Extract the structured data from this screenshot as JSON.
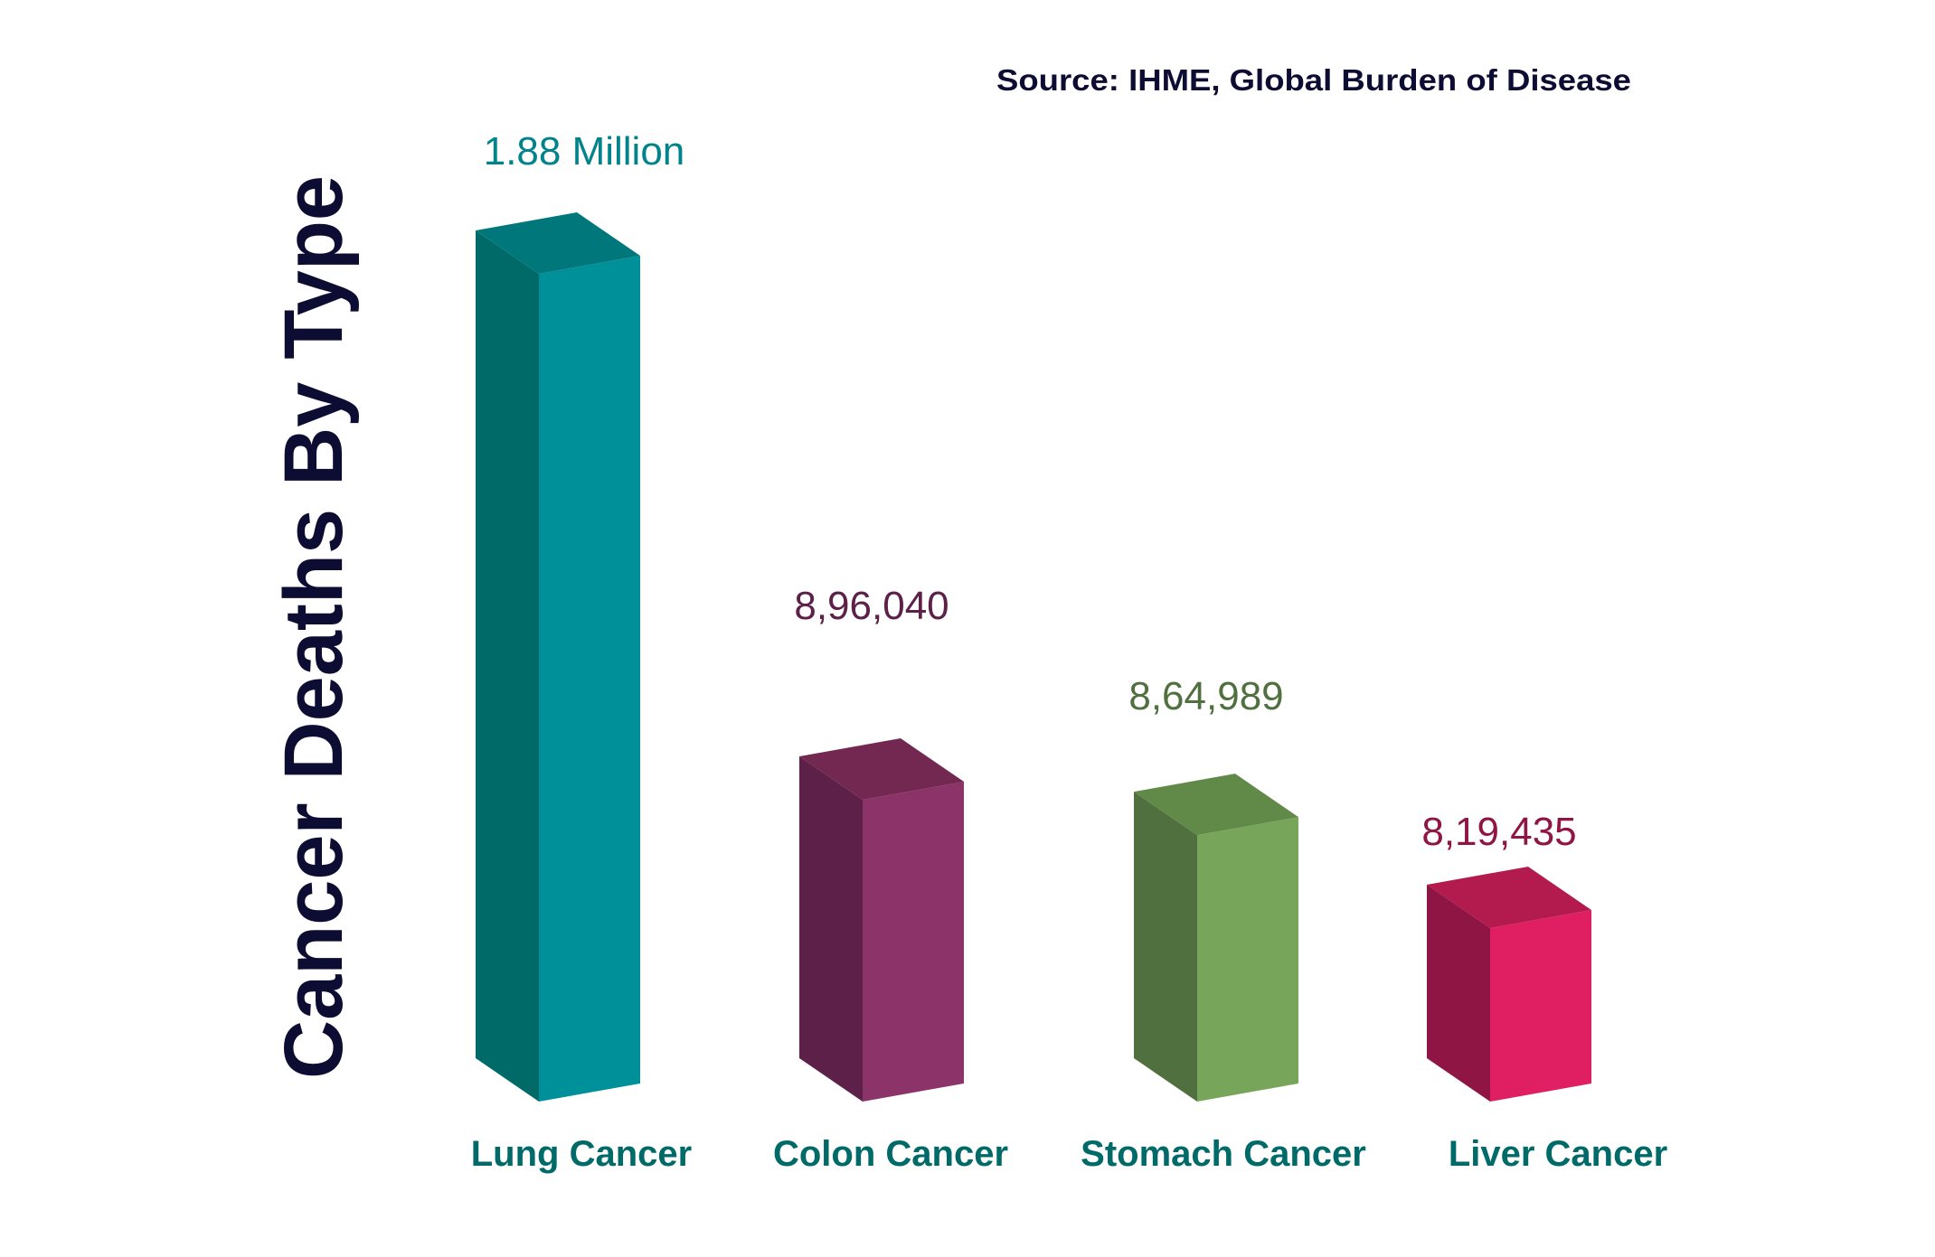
{
  "chart_data": {
    "type": "bar",
    "title": "Cancer Deaths By Type",
    "source": "Source: IHME, Global Burden of Disease",
    "categories": [
      "Lung Cancer",
      "Colon Cancer",
      "Stomach Cancer",
      "Liver Cancer"
    ],
    "values": [
      1880000,
      896040,
      864989,
      819435
    ],
    "data_labels": [
      "1.88 Million",
      "8,96,040",
      "8,64,989",
      "8,19,435"
    ],
    "style": "3d-bar",
    "grid": false,
    "colors": {
      "front": [
        "#00909a",
        "#8c336a",
        "#77a65a",
        "#e01f63"
      ],
      "side": [
        "#006a69",
        "#5d2149",
        "#51703f",
        "#8f1544"
      ],
      "top": [
        "#00787b",
        "#722851",
        "#618a48",
        "#b31a4e"
      ],
      "value_label": [
        "#00838a",
        "#5d2149",
        "#51703f",
        "#8f1544"
      ],
      "category_label": "#006a69",
      "title": "#0d0d33"
    }
  }
}
